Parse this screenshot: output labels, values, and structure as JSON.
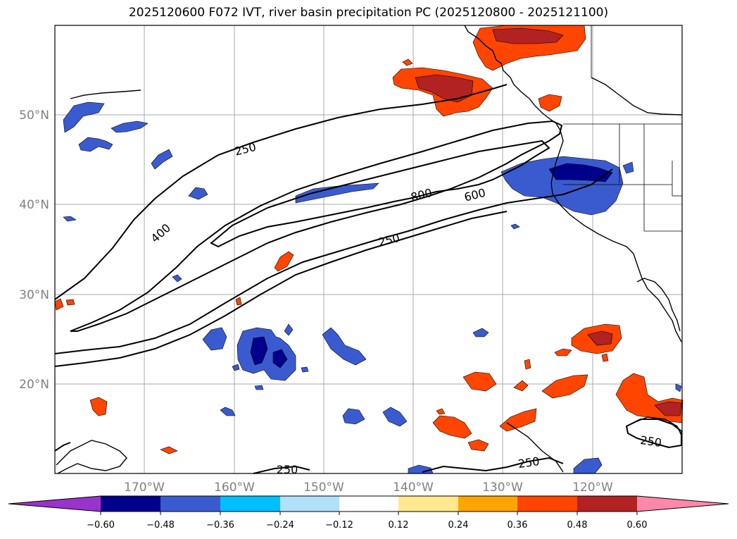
{
  "title": "2025120600 F072 IVT, river basin precipitation PC (2025120800 - 2025121100)",
  "map": {
    "projection": "PlateCarree",
    "lon_range": [
      -180,
      -110
    ],
    "lat_range": [
      10,
      60
    ],
    "lat_labels": [
      "50°N",
      "40°N",
      "30°N",
      "20°N"
    ],
    "lon_labels": [
      "170°W",
      "160°W",
      "150°W",
      "140°W",
      "130°W",
      "120°W"
    ],
    "ivt_contour_labels": [
      "250",
      "400",
      "800",
      "600",
      "250",
      "250",
      "250",
      "250"
    ],
    "ivt_levels": [
      250,
      400,
      600,
      800
    ]
  },
  "colorbar": {
    "ticks": [
      "−0.60",
      "−0.48",
      "−0.36",
      "−0.24",
      "−0.12",
      "0.12",
      "0.24",
      "0.36",
      "0.48",
      "0.60"
    ],
    "colors": {
      "under": "#9933cc",
      "neg_060": "#00008b",
      "neg_048": "#3a5bd0",
      "neg_036": "#00bfff",
      "neg_024": "#b0e0fa",
      "neutral": "#ffffff",
      "pos_012": "#ffe88f",
      "pos_024": "#ffa500",
      "pos_036": "#ff4500",
      "pos_048": "#b22222",
      "over": "#ff88aa"
    }
  }
}
